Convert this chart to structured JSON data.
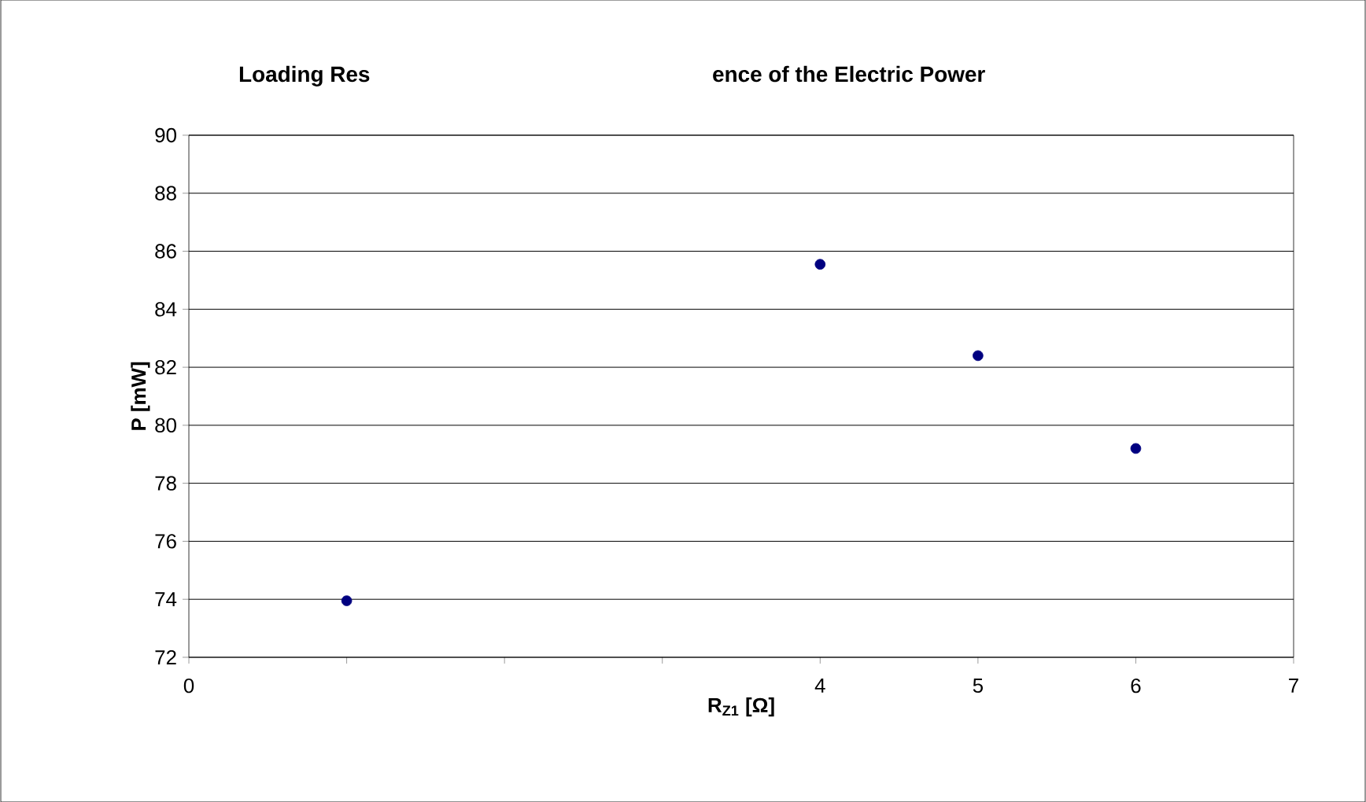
{
  "chart_data": {
    "type": "scatter",
    "title": "Loading Res",
    "subtitle": "ence of the Electric Power",
    "xlabel": "R$_{Z1}$ [Ω]",
    "ylabel": "P [mW]",
    "x": [
      1,
      4,
      5,
      6
    ],
    "series": [
      {
        "color": "#000080",
        "values": [
          73.95,
          85.55,
          82.4,
          79.2
        ]
      }
    ],
    "xlim": [
      0,
      7
    ],
    "xticks": [
      0,
      {
        "value": 1,
        "label": null
      },
      {
        "value": 2,
        "label": null
      },
      {
        "value": 3,
        "label": null
      },
      4,
      5,
      6,
      7
    ],
    "ylim": [
      72,
      90
    ],
    "yticks": [
      72,
      74,
      76,
      78,
      80,
      82,
      84,
      86,
      88,
      90
    ],
    "grid": "y",
    "marker": "circle"
  }
}
